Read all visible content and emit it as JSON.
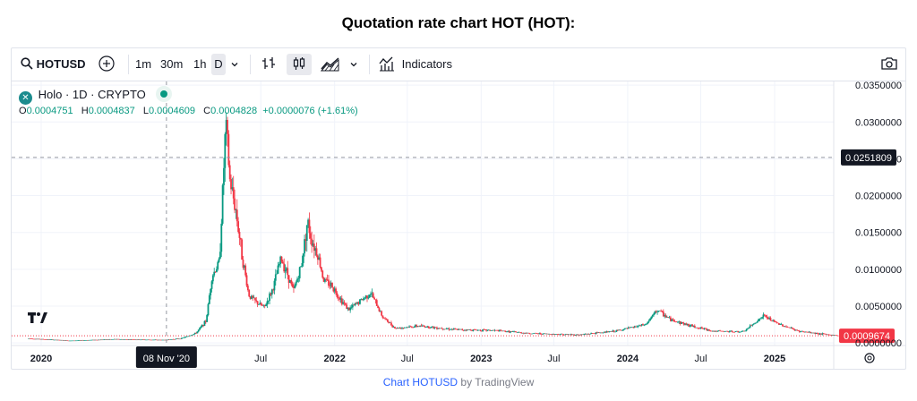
{
  "page_title": "Quotation rate chart HOT (HOT):",
  "toolbar": {
    "symbol": "HOTUSD",
    "intervals": [
      "1m",
      "30m",
      "1h",
      "D"
    ],
    "selected_interval": "D",
    "indicators_label": "Indicators"
  },
  "legend": {
    "name": "Holo · 1D · CRYPTO",
    "open_label": "O",
    "open": "0.0004751",
    "high_label": "H",
    "high": "0.0004837",
    "low_label": "L",
    "low": "0.0004609",
    "close_label": "C",
    "close": "0.0004828",
    "change": "+0.0000076 (+1.61%)"
  },
  "colors": {
    "up": "#089981",
    "down": "#f23645",
    "accent": "#2962ff"
  },
  "chart_data": {
    "type": "candlestick",
    "x_ticks": [
      "2020",
      "Jul",
      "2022",
      "Jul",
      "2023",
      "Jul",
      "2024",
      "Jul",
      "2025"
    ],
    "x_tick_dates": [
      "2020-01-01",
      "2021-07-01",
      "2022-01-01",
      "2022-07-01",
      "2023-01-01",
      "2023-07-01",
      "2024-01-01",
      "2024-07-01",
      "2025-01-01"
    ],
    "y_ticks": [
      "0.0350000",
      "0.0300000",
      "0.0250000",
      "0.0200000",
      "0.0150000",
      "0.0100000",
      "0.0050000",
      "0.0000000"
    ],
    "y_tick_values": [
      0.035,
      0.03,
      0.025,
      0.02,
      0.015,
      0.01,
      0.005,
      0.0
    ],
    "ylim": [
      -0.00035,
      0.0355
    ],
    "crosshair": {
      "date_label": "08 Nov '20",
      "date": "2020-11-08",
      "price_label": "0.0251809",
      "price": 0.0251809
    },
    "last_price": {
      "label": "0.0009674",
      "value": 0.0009674
    },
    "series": [
      {
        "date": "2019-12-01",
        "value": 0.0006
      },
      {
        "date": "2020-03-15",
        "value": 0.0003
      },
      {
        "date": "2020-07-01",
        "value": 0.0005
      },
      {
        "date": "2020-11-01",
        "value": 0.0004
      },
      {
        "date": "2020-12-15",
        "value": 0.0006
      },
      {
        "date": "2021-01-20",
        "value": 0.0013
      },
      {
        "date": "2021-02-15",
        "value": 0.003
      },
      {
        "date": "2021-03-01",
        "value": 0.009
      },
      {
        "date": "2021-03-20",
        "value": 0.011
      },
      {
        "date": "2021-04-05",
        "value": 0.0299
      },
      {
        "date": "2021-04-15",
        "value": 0.022
      },
      {
        "date": "2021-04-30",
        "value": 0.018
      },
      {
        "date": "2021-05-15",
        "value": 0.012
      },
      {
        "date": "2021-06-01",
        "value": 0.0065
      },
      {
        "date": "2021-06-20",
        "value": 0.0055
      },
      {
        "date": "2021-07-10",
        "value": 0.0048
      },
      {
        "date": "2021-08-01",
        "value": 0.0075
      },
      {
        "date": "2021-08-20",
        "value": 0.0115
      },
      {
        "date": "2021-09-05",
        "value": 0.0095
      },
      {
        "date": "2021-09-20",
        "value": 0.007
      },
      {
        "date": "2021-10-10",
        "value": 0.0105
      },
      {
        "date": "2021-10-25",
        "value": 0.0165
      },
      {
        "date": "2021-11-05",
        "value": 0.014
      },
      {
        "date": "2021-11-20",
        "value": 0.012
      },
      {
        "date": "2021-12-05",
        "value": 0.0085
      },
      {
        "date": "2021-12-25",
        "value": 0.0078
      },
      {
        "date": "2022-01-15",
        "value": 0.006
      },
      {
        "date": "2022-02-05",
        "value": 0.0045
      },
      {
        "date": "2022-03-01",
        "value": 0.0055
      },
      {
        "date": "2022-04-01",
        "value": 0.0068
      },
      {
        "date": "2022-05-01",
        "value": 0.0035
      },
      {
        "date": "2022-06-01",
        "value": 0.002
      },
      {
        "date": "2022-08-01",
        "value": 0.0023
      },
      {
        "date": "2022-11-01",
        "value": 0.0018
      },
      {
        "date": "2023-02-01",
        "value": 0.0017
      },
      {
        "date": "2023-05-01",
        "value": 0.0013
      },
      {
        "date": "2023-09-01",
        "value": 0.0011
      },
      {
        "date": "2023-12-01",
        "value": 0.0016
      },
      {
        "date": "2024-02-15",
        "value": 0.0025
      },
      {
        "date": "2024-03-15",
        "value": 0.0045
      },
      {
        "date": "2024-04-15",
        "value": 0.0032
      },
      {
        "date": "2024-06-01",
        "value": 0.0024
      },
      {
        "date": "2024-08-01",
        "value": 0.0016
      },
      {
        "date": "2024-10-15",
        "value": 0.0015
      },
      {
        "date": "2024-12-05",
        "value": 0.0037
      },
      {
        "date": "2025-01-01",
        "value": 0.0028
      },
      {
        "date": "2025-03-01",
        "value": 0.0016
      },
      {
        "date": "2025-05-01",
        "value": 0.0012
      },
      {
        "date": "2025-06-10",
        "value": 0.00097
      }
    ]
  },
  "footer": {
    "link": "Chart HOTUSD",
    "suffix": "by TradingView"
  }
}
